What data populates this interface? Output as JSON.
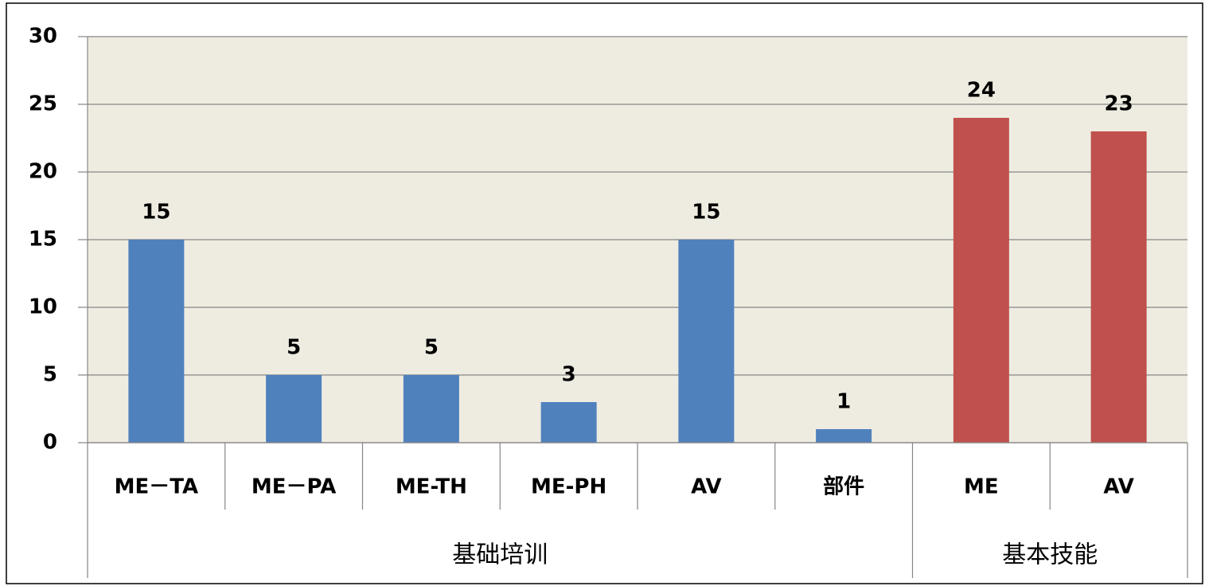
{
  "chart_data": {
    "type": "bar",
    "groups": [
      {
        "label": "基础培训",
        "color": "#4f81bd",
        "categories": [
          "ME－TA",
          "ME－PA",
          "ME-TH",
          "ME-PH",
          "AV",
          "部件"
        ],
        "values": [
          15,
          5,
          5,
          3,
          15,
          1
        ]
      },
      {
        "label": "基本技能",
        "color": "#c0504d",
        "categories": [
          "ME",
          "AV"
        ],
        "values": [
          24,
          23
        ]
      }
    ],
    "ylim": [
      0,
      30
    ],
    "yticks": [
      0,
      5,
      10,
      15,
      20,
      25,
      30
    ],
    "grid": true
  }
}
